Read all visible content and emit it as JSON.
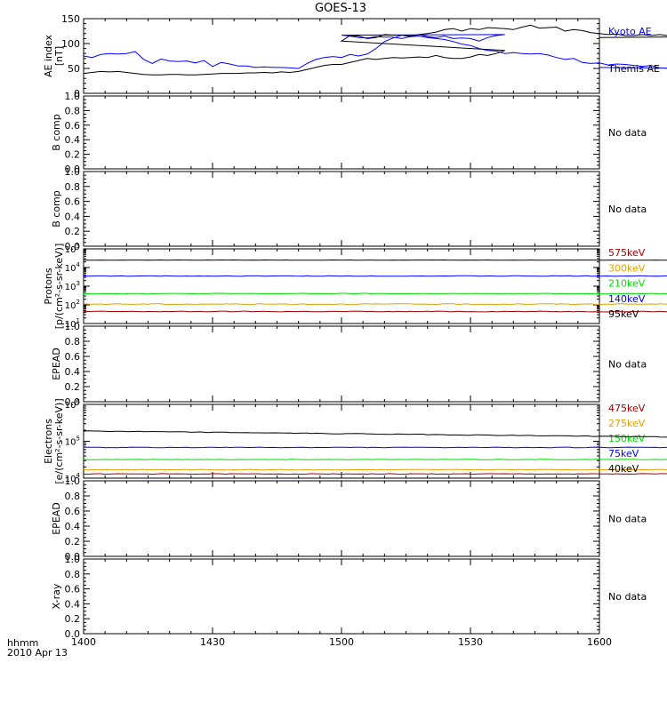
{
  "title": "GOES-13",
  "footer": {
    "unit_label": "hhmm",
    "date_label": "2010 Apr 13"
  },
  "chart_data": [
    {
      "id": "ae",
      "type": "line",
      "ylabel": "AE index",
      "ylabel2": "[nT]",
      "ylim": [
        0,
        150
      ],
      "yticks": [
        0,
        50,
        100,
        150
      ],
      "xlim": [
        1400,
        1600
      ],
      "series": [
        {
          "name": "Kyoto AE",
          "color": "#0000ff",
          "x": [
            1400,
            1402,
            1404,
            1406,
            1408,
            1410,
            1412,
            1414,
            1416,
            1418,
            1420,
            1422,
            1424,
            1426,
            1428,
            1430,
            1432,
            1434,
            1436,
            1438,
            1440,
            1442,
            1444,
            1446,
            1448,
            1450,
            1452,
            1454,
            1456,
            1458,
            1460,
            1462,
            1464,
            1466,
            1468,
            1470,
            1472,
            1474,
            1476,
            1478,
            1480,
            1482,
            1484,
            1486,
            1488,
            1490,
            1492,
            1494,
            1496,
            1498,
            1500,
            1502,
            1504,
            1506,
            1508,
            1510,
            1512,
            1514,
            1516,
            1518,
            1520,
            1522,
            1524,
            1526,
            1528,
            1530,
            1532,
            1534,
            1536,
            1538,
            1540,
            1542,
            1544,
            1546,
            1548,
            1550,
            1552,
            1554,
            1556,
            1558,
            1560,
            1562,
            1564,
            1566,
            1568,
            1570,
            1572,
            1574,
            1576,
            1578,
            1580,
            1582,
            1584,
            1586,
            1588,
            1590,
            1592,
            1594,
            1596,
            1598,
            1600
          ],
          "values": [
            75,
            72,
            78,
            80,
            79,
            80,
            84,
            68,
            60,
            69,
            65,
            64,
            65,
            61,
            66,
            54,
            62,
            59,
            55,
            55,
            52,
            53,
            52,
            52,
            51,
            50,
            60,
            68,
            72,
            74,
            72,
            78,
            75,
            79,
            90,
            104,
            111,
            117,
            116,
            118,
            114,
            112,
            115,
            110,
            111,
            110,
            105,
            112,
            116,
            118,
            117,
            115,
            112,
            111,
            114,
            113,
            113,
            110,
            114,
            115,
            112,
            110,
            108,
            104,
            99,
            96,
            90,
            86,
            85,
            80,
            82,
            80,
            79,
            80,
            77,
            72,
            68,
            70,
            62,
            60,
            61,
            57,
            59,
            58,
            56,
            54,
            56,
            51,
            50,
            52,
            52,
            55,
            53,
            50,
            46,
            45,
            49,
            49,
            46,
            49,
            52
          ]
        },
        {
          "name": "Themis AE",
          "color": "#000000",
          "x": [
            1400,
            1402,
            1404,
            1406,
            1408,
            1410,
            1412,
            1414,
            1416,
            1418,
            1420,
            1422,
            1424,
            1426,
            1428,
            1430,
            1432,
            1434,
            1436,
            1438,
            1440,
            1442,
            1444,
            1446,
            1448,
            1450,
            1452,
            1454,
            1456,
            1458,
            1460,
            1462,
            1464,
            1466,
            1468,
            1470,
            1472,
            1474,
            1476,
            1478,
            1480,
            1482,
            1484,
            1486,
            1488,
            1490,
            1492,
            1494,
            1496,
            1498,
            1500,
            1502,
            1504,
            1506,
            1508,
            1510,
            1512,
            1514,
            1516,
            1518,
            1520,
            1522,
            1524,
            1526,
            1528,
            1530,
            1532,
            1534,
            1536,
            1538,
            1540,
            1542,
            1544,
            1546,
            1548,
            1550,
            1552,
            1554,
            1556,
            1558,
            1560,
            1562,
            1564,
            1566,
            1568,
            1570,
            1572,
            1574,
            1576,
            1578,
            1580,
            1582,
            1584,
            1586,
            1588,
            1590,
            1592,
            1594,
            1596,
            1598,
            1600
          ],
          "values": [
            40,
            42,
            44,
            43,
            44,
            42,
            40,
            38,
            37,
            37,
            38,
            38,
            37,
            37,
            38,
            39,
            40,
            40,
            40,
            41,
            41,
            42,
            41,
            43,
            42,
            44,
            48,
            52,
            56,
            58,
            58,
            62,
            66,
            70,
            68,
            70,
            72,
            71,
            72,
            73,
            72,
            76,
            72,
            70,
            70,
            73,
            78,
            76,
            80,
            86,
            105,
            116,
            115,
            110,
            112,
            118,
            117,
            117,
            114,
            118,
            120,
            123,
            128,
            130,
            125,
            130,
            128,
            132,
            131,
            130,
            128,
            133,
            137,
            131,
            132,
            133,
            125,
            128,
            126,
            122,
            120,
            118,
            119,
            116,
            116,
            118,
            116,
            118,
            116,
            115,
            116,
            114,
            110,
            112,
            115,
            117,
            112,
            109,
            110,
            115,
            112
          ]
        }
      ]
    },
    {
      "id": "bcomp1",
      "type": "line",
      "ylabel": "B comp",
      "ylim": [
        0,
        1
      ],
      "yticks": [
        0.0,
        0.2,
        0.4,
        0.6,
        0.8,
        1.0
      ],
      "no_data": "No data"
    },
    {
      "id": "bcomp2",
      "type": "line",
      "ylabel": "B comp",
      "ylim": [
        0,
        1
      ],
      "yticks": [
        0.0,
        0.2,
        0.4,
        0.6,
        0.8,
        1.0
      ],
      "no_data": "No data"
    },
    {
      "id": "protons",
      "type": "line",
      "log": true,
      "ylabel": "Protons",
      "ylabel2": "[p/(cm²-s-sr-keV)]",
      "ylim": [
        10,
        100000
      ],
      "decades": [
        1,
        2,
        3,
        4,
        5
      ],
      "series": [
        {
          "name": "575keV",
          "color": "#a00000",
          "level": 44,
          "noise": 0.05
        },
        {
          "name": "300keV",
          "color": "#e8a000",
          "level": 110,
          "noise": 0.06
        },
        {
          "name": "210keV",
          "color": "#00dd00",
          "level": 400,
          "noise": 0.04
        },
        {
          "name": "140keV",
          "color": "#0000ff",
          "level": 3500,
          "noise": 0.03
        },
        {
          "name": "95keV",
          "color": "#000000",
          "level": 25000,
          "noise": 0.02
        }
      ],
      "x_end": 1592
    },
    {
      "id": "epead1",
      "type": "line",
      "ylabel": "EPEAD",
      "ylim": [
        0,
        1
      ],
      "yticks": [
        0.0,
        0.2,
        0.4,
        0.6,
        0.8,
        1.0
      ],
      "no_data": "No data"
    },
    {
      "id": "electrons",
      "type": "line",
      "log": true,
      "ylabel": "Electrons",
      "ylabel2": "[e/(cm²-s-sr-keV)]",
      "ylim": [
        10000,
        1000000
      ],
      "decades": [
        4,
        5,
        6
      ],
      "series": [
        {
          "name": "475keV",
          "color": "#a00000",
          "level": 13000,
          "noise": 0.02
        },
        {
          "name": "275keV",
          "color": "#e8a000",
          "level": 17000,
          "noise": 0.02
        },
        {
          "name": "150keV",
          "color": "#00dd00",
          "level": 32000,
          "noise": 0.015
        },
        {
          "name": "75keV",
          "color": "#0000ff",
          "level": 68000,
          "noise": 0.02
        },
        {
          "name": "40keV",
          "color": "#000000",
          "level": 190000,
          "level_end": 125000,
          "noise": 0.02
        }
      ],
      "x_end": 1592
    },
    {
      "id": "epead2",
      "type": "line",
      "ylabel": "EPEAD",
      "ylim": [
        0,
        1
      ],
      "yticks": [
        0.0,
        0.2,
        0.4,
        0.6,
        0.8,
        1.0
      ],
      "no_data": "No data"
    },
    {
      "id": "xray",
      "type": "line",
      "ylabel": "X-ray",
      "ylim": [
        0,
        1
      ],
      "yticks": [
        0.0,
        0.2,
        0.4,
        0.6,
        0.8,
        1.0
      ],
      "no_data": "No data",
      "xticks": [
        1400,
        1430,
        1500,
        1530,
        1600
      ]
    }
  ]
}
